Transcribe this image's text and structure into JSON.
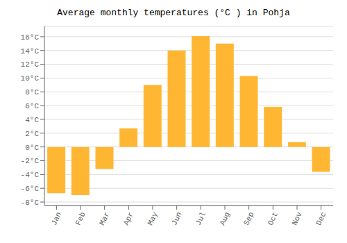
{
  "chart_data": {
    "type": "bar",
    "title": "Average monthly temperatures (°C ) in Pohja",
    "categories": [
      "Jan",
      "Feb",
      "Mar",
      "Apr",
      "May",
      "Jun",
      "Jul",
      "Aug",
      "Sep",
      "Oct",
      "Nov",
      "Dec"
    ],
    "values": [
      -6.7,
      -7.0,
      -3.2,
      2.7,
      9.0,
      14.0,
      16.1,
      15.0,
      10.3,
      5.8,
      0.7,
      -3.6
    ],
    "color": "#FFB733",
    "ylim": [
      -8.5,
      17.5
    ],
    "yticks": [
      {
        "value": -8,
        "label": "-8°C"
      },
      {
        "value": -6,
        "label": "-6°C"
      },
      {
        "value": -4,
        "label": "-4°C"
      },
      {
        "value": -2,
        "label": "-2°C"
      },
      {
        "value": 0,
        "label": "0°C"
      },
      {
        "value": 2,
        "label": "2°C"
      },
      {
        "value": 4,
        "label": "4°C"
      },
      {
        "value": 6,
        "label": "6°C"
      },
      {
        "value": 8,
        "label": "8°C"
      },
      {
        "value": 10,
        "label": "10°C"
      },
      {
        "value": 12,
        "label": "12°C"
      },
      {
        "value": 14,
        "label": "14°C"
      },
      {
        "value": 16,
        "label": "16°C"
      }
    ],
    "grid": true
  }
}
